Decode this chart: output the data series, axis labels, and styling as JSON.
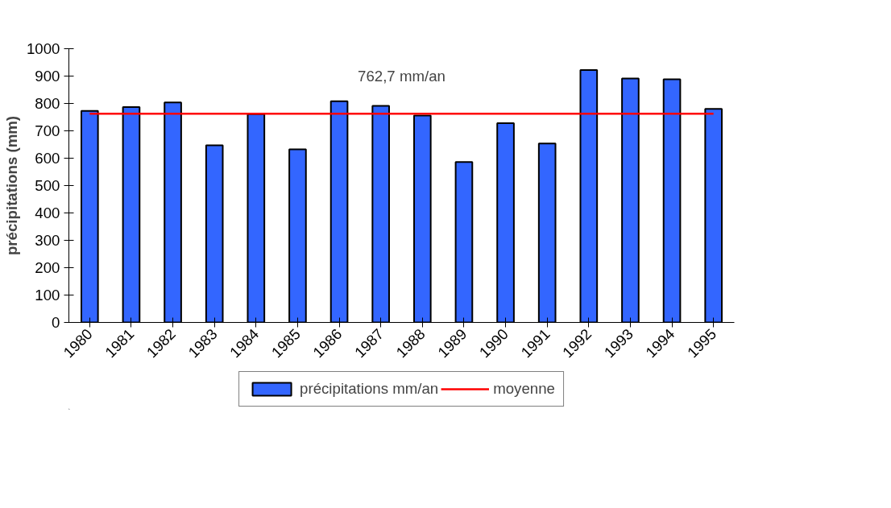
{
  "chart_data": {
    "type": "bar",
    "ylabel": "précipitations (mm)",
    "categories": [
      "1980",
      "1981",
      "1982",
      "1983",
      "1984",
      "1985",
      "1986",
      "1987",
      "1988",
      "1989",
      "1990",
      "1991",
      "1992",
      "1993",
      "1994",
      "1995"
    ],
    "series": [
      {
        "name": "précipitations mm/an",
        "color": "#3366ff",
        "values": [
          773,
          787,
          804,
          647,
          761,
          632,
          808,
          791,
          756,
          586,
          728,
          654,
          922,
          891,
          888,
          780
        ]
      },
      {
        "name": "moyenne",
        "type": "line",
        "color": "#ff0000",
        "values": [
          762.7,
          762.7,
          762.7,
          762.7,
          762.7,
          762.7,
          762.7,
          762.7,
          762.7,
          762.7,
          762.7,
          762.7,
          762.7,
          762.7,
          762.7,
          762.7
        ]
      }
    ],
    "annotations": [
      "762,7 mm/an"
    ],
    "ylim": [
      0,
      1000
    ],
    "yticks": [
      0,
      100,
      200,
      300,
      400,
      500,
      600,
      700,
      800,
      900,
      1000
    ],
    "grid": false,
    "legend": "bottom"
  }
}
